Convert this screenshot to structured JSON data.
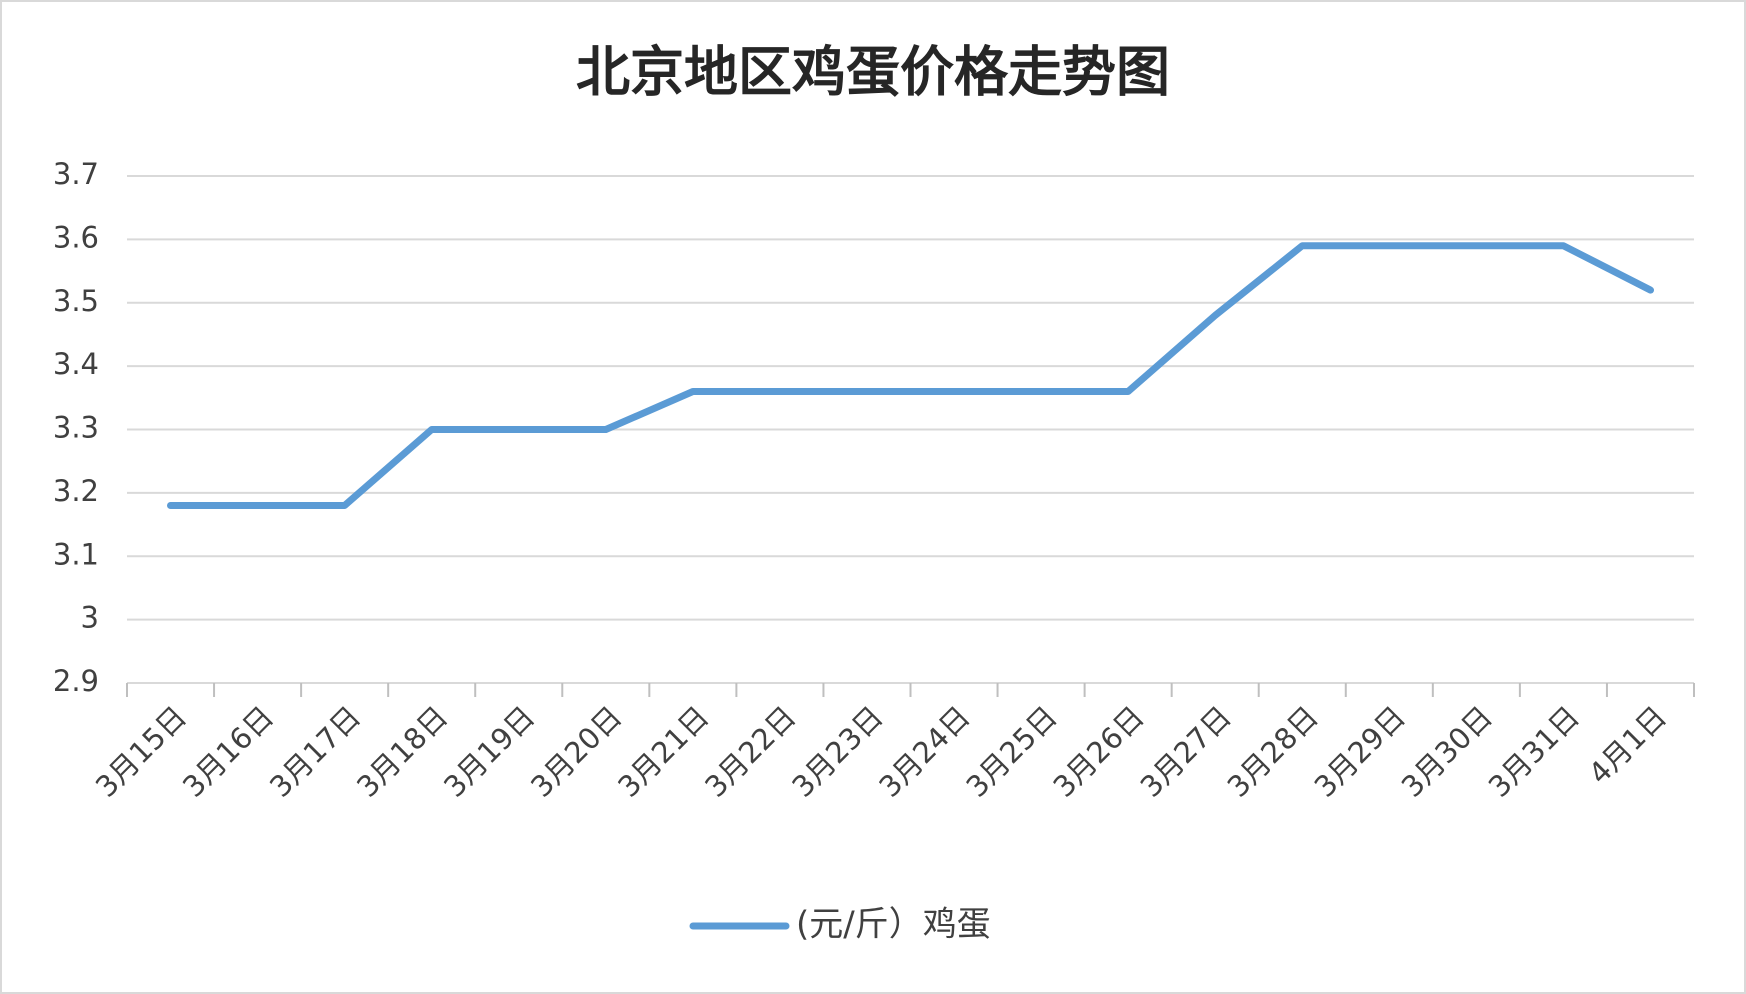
{
  "chart_data": {
    "type": "line",
    "title": "北京地区鸡蛋价格走势图",
    "categories": [
      "3月15日",
      "3月16日",
      "3月17日",
      "3月18日",
      "3月19日",
      "3月20日",
      "3月21日",
      "3月22日",
      "3月23日",
      "3月24日",
      "3月25日",
      "3月26日",
      "3月27日",
      "3月28日",
      "3月29日",
      "3月30日",
      "3月31日",
      "4月1日"
    ],
    "series": [
      {
        "name": "(元/斤）鸡蛋",
        "color": "#5b9bd5",
        "values": [
          3.18,
          3.18,
          3.18,
          3.3,
          3.3,
          3.3,
          3.36,
          3.36,
          3.36,
          3.36,
          3.36,
          3.36,
          3.48,
          3.59,
          3.59,
          3.59,
          3.59,
          3.52
        ]
      }
    ],
    "ylim": [
      2.9,
      3.7
    ],
    "yticks": [
      2.9,
      3,
      3.1,
      3.2,
      3.3,
      3.4,
      3.5,
      3.6,
      3.7
    ],
    "grid": true,
    "legend": "bottom"
  }
}
